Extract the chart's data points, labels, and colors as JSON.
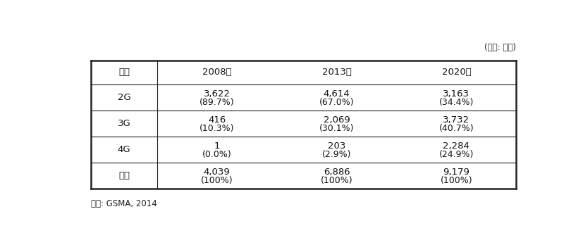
{
  "unit_label": "(단위: 백만)",
  "columns": [
    "구분",
    "2008년",
    "2013년",
    "2020년"
  ],
  "rows": [
    {
      "label": "2G",
      "values": [
        "3,622",
        "4,614",
        "3,163"
      ],
      "pcts": [
        "(89.7%)",
        "(67.0%)",
        "(34.4%)"
      ]
    },
    {
      "label": "3G",
      "values": [
        "416",
        "2,069",
        "3,732"
      ],
      "pcts": [
        "(10.3%)",
        "(30.1%)",
        "(40.7%)"
      ]
    },
    {
      "label": "4G",
      "values": [
        "1",
        "203",
        "2,284"
      ],
      "pcts": [
        "(0.0%)",
        "(2.9%)",
        "(24.9%)"
      ]
    },
    {
      "label": "합계",
      "values": [
        "4,039",
        "6,886",
        "9,179"
      ],
      "pcts": [
        "(100%)",
        "(100%)",
        "(100%)"
      ]
    }
  ],
  "source": "자료: GSMA, 2014",
  "line_color": "#222222",
  "font_size": 9.5,
  "header_font_size": 9.5,
  "lw_thick": 1.8,
  "lw_thin": 0.8
}
